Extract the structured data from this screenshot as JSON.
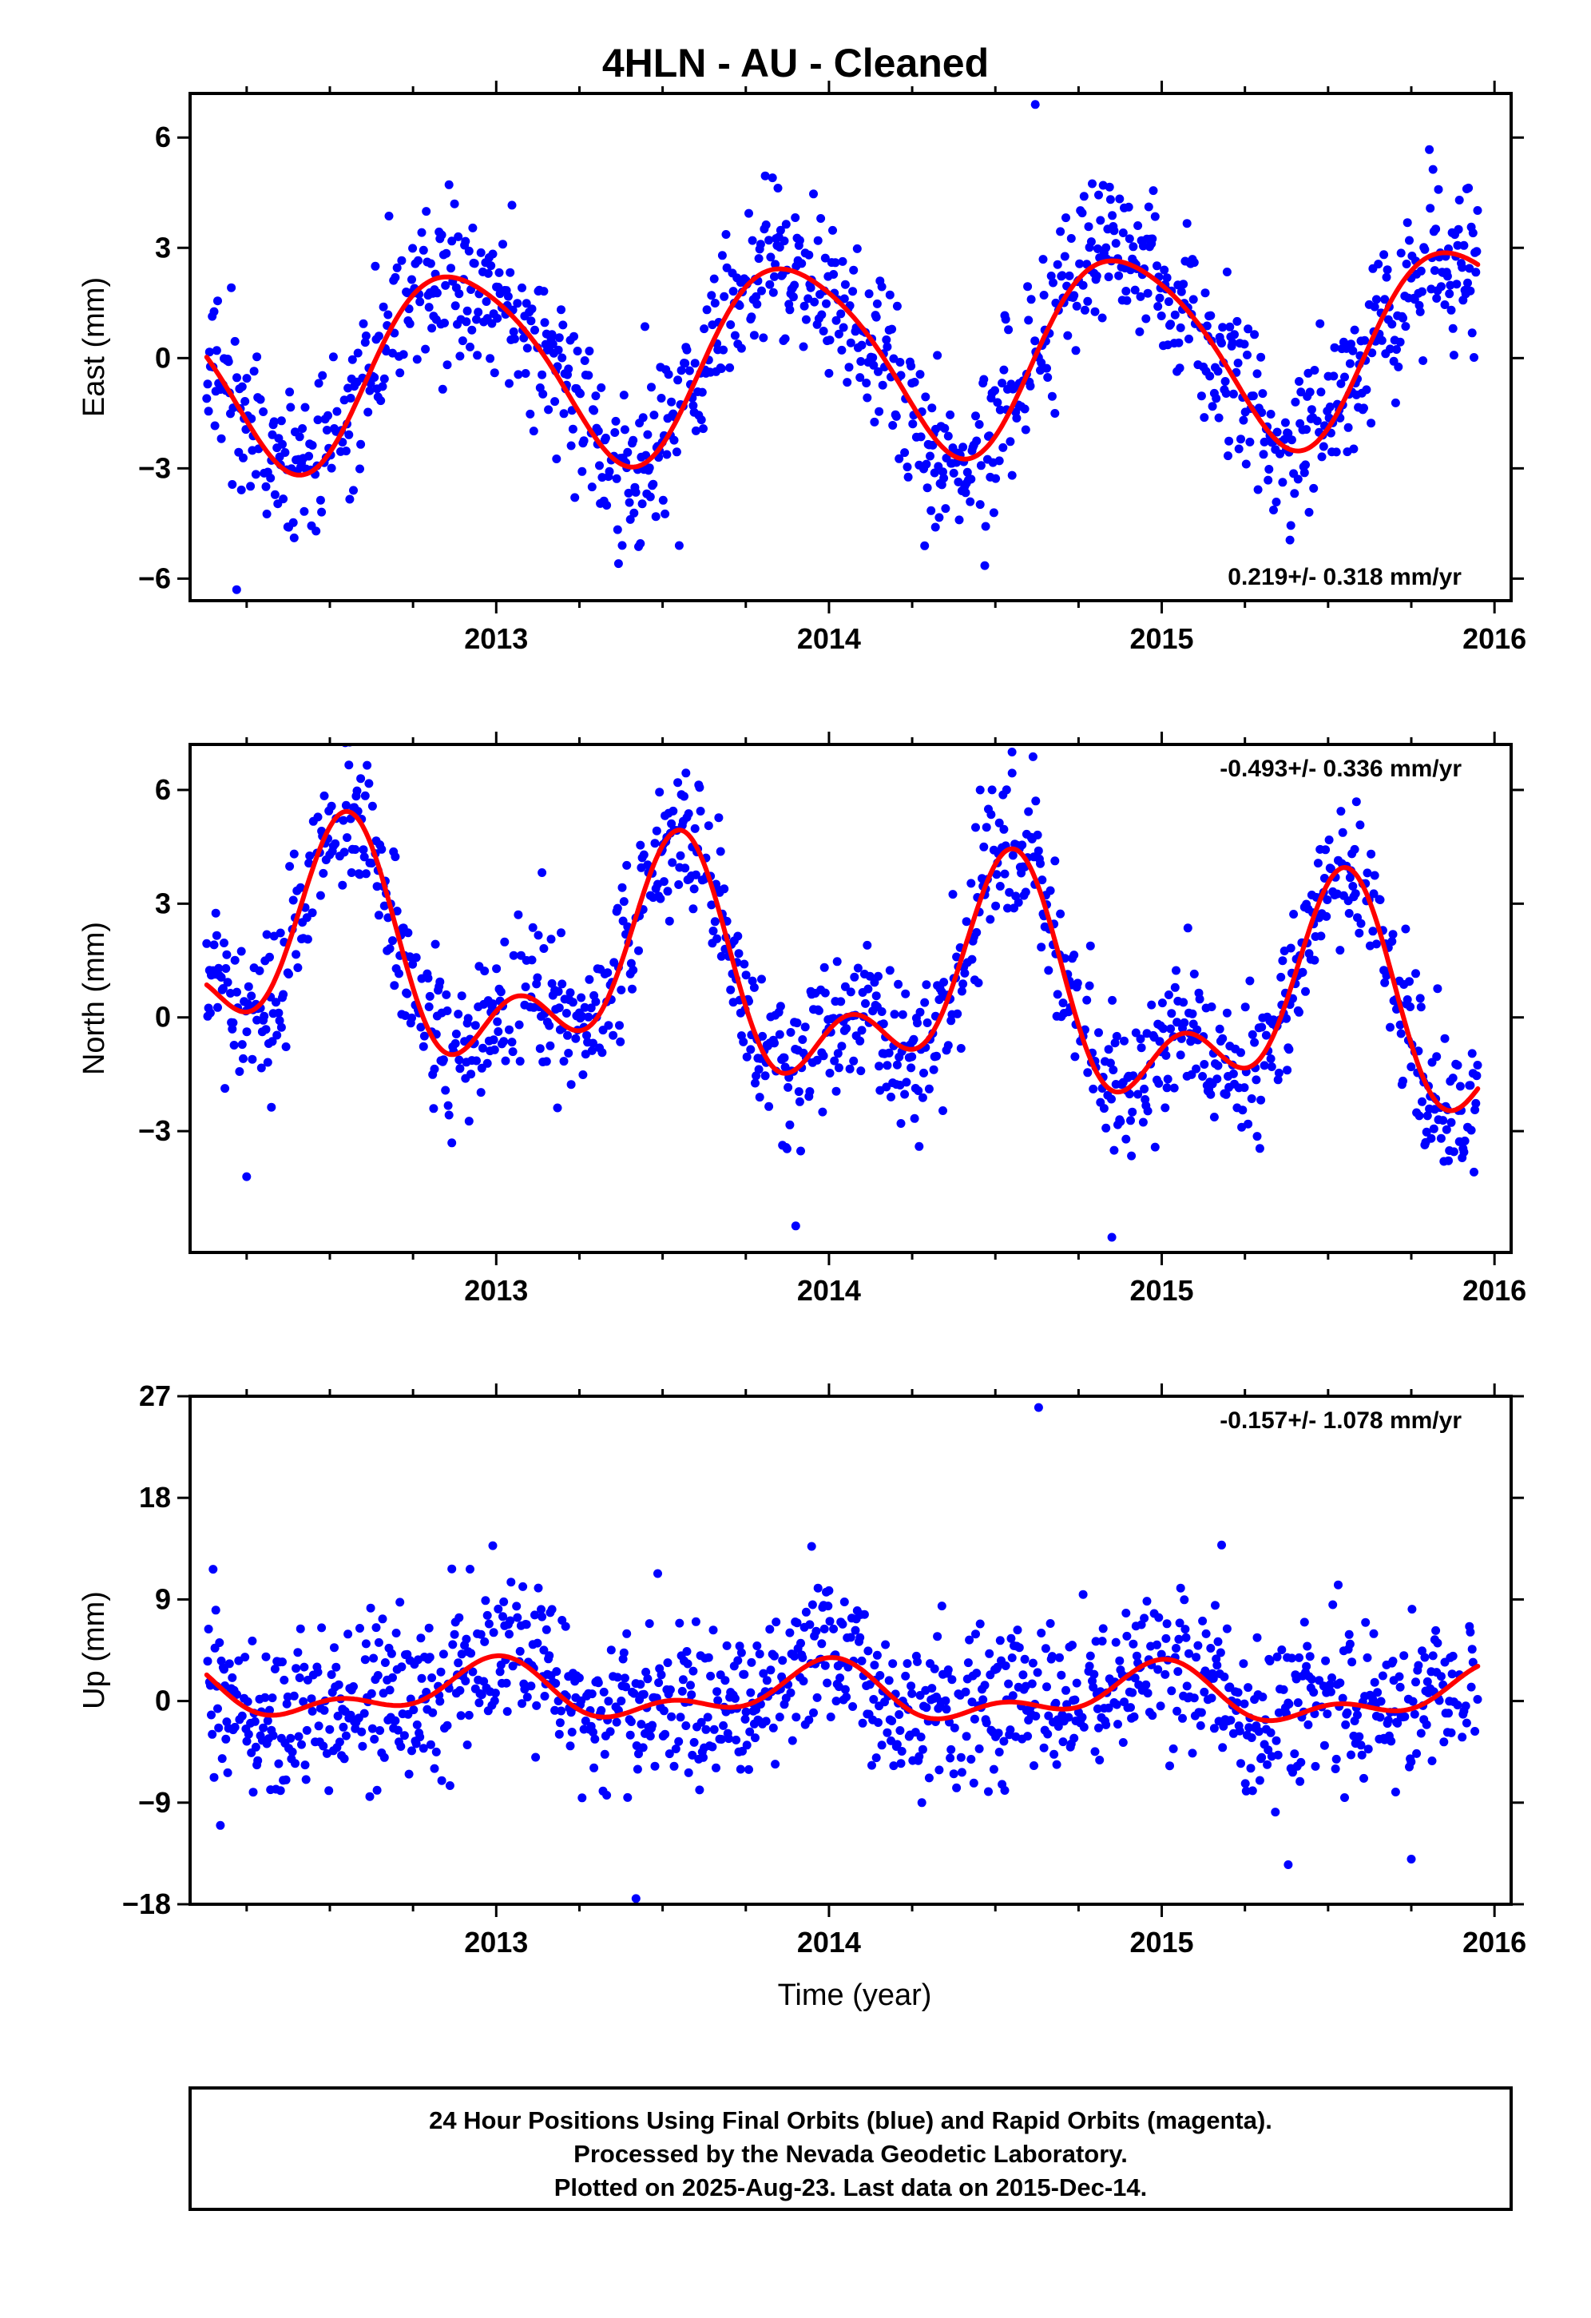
{
  "title": "4HLN  - AU - Cleaned",
  "xlabel": "Time (year)",
  "footer": {
    "line1": "24 Hour Positions Using Final Orbits (blue) and Rapid Orbits (magenta).",
    "line2": "Processed by the Nevada Geodetic Laboratory.",
    "line3": "Plotted on 2025-Aug-23. Last data on 2015-Dec-14."
  },
  "colors": {
    "points": "#0000ff",
    "model": "#ff0000",
    "frame": "#000000"
  },
  "chart_data": [
    {
      "type": "scatter",
      "ylabel": "East (mm)",
      "xlim": [
        2012.08,
        2016.05
      ],
      "ylim": [
        -6.6,
        7.2
      ],
      "yticks": [
        -6,
        -3,
        0,
        3,
        6
      ],
      "xticks": [
        2013,
        2014,
        2015,
        2016
      ],
      "rate_label": "0.219+/- 0.318 mm/yr",
      "rate_position": "bottom-right",
      "data_span": [
        2012.13,
        2015.95
      ],
      "model": {
        "offset": 0.05,
        "trend": 0.219,
        "annual_amp": 2.6,
        "annual_peak": 2012.89,
        "semiannual_amp": 0.35,
        "semiannual_peak": 2012.7
      },
      "noise_sd": 1.1,
      "outliers": [
        [
          2014.62,
          6.9
        ],
        [
          2012.22,
          -6.3
        ],
        [
          2013.55,
          -5.1
        ],
        [
          2014.32,
          -4.6
        ]
      ]
    },
    {
      "type": "scatter",
      "ylabel": "North (mm)",
      "xlim": [
        2012.08,
        2016.05
      ],
      "ylim": [
        -6.2,
        7.2
      ],
      "yticks": [
        -3,
        0,
        3,
        6
      ],
      "xticks": [
        2013,
        2014,
        2015,
        2016
      ],
      "rate_label": "-0.493+/- 0.336 mm/yr",
      "rate_position": "top-right",
      "data_span": [
        2012.13,
        2015.95
      ],
      "model": {
        "offset": 0.85,
        "trend": -0.493,
        "annual_amp": 2.35,
        "annual_peak": 2012.53,
        "semiannual_amp": 1.55,
        "semiannual_peak": 2012.56
      },
      "noise_sd": 1.0,
      "outliers": [
        [
          2014.55,
          7.0
        ],
        [
          2014.85,
          -5.8
        ],
        [
          2013.9,
          -5.5
        ],
        [
          2012.25,
          -4.2
        ]
      ]
    },
    {
      "type": "scatter",
      "ylabel": "Up (mm)",
      "xlim": [
        2012.08,
        2016.05
      ],
      "ylim": [
        -18,
        27
      ],
      "yticks": [
        -18,
        -9,
        0,
        9,
        18,
        27
      ],
      "xticks": [
        2013,
        2014,
        2015,
        2016
      ],
      "rate_label": "-0.157+/- 1.078 mm/yr",
      "rate_position": "top-right",
      "data_span": [
        2012.13,
        2015.95
      ],
      "model": {
        "offset": 0.6,
        "trend": -0.157,
        "annual_amp": 2.0,
        "annual_peak": 2012.98,
        "semiannual_amp": 1.3,
        "semiannual_peak": 2012.02
      },
      "noise_sd": 3.6,
      "outliers": [
        [
          2014.63,
          26.0
        ],
        [
          2013.42,
          -17.5
        ],
        [
          2015.38,
          -14.5
        ],
        [
          2015.75,
          -14.0
        ]
      ]
    }
  ]
}
